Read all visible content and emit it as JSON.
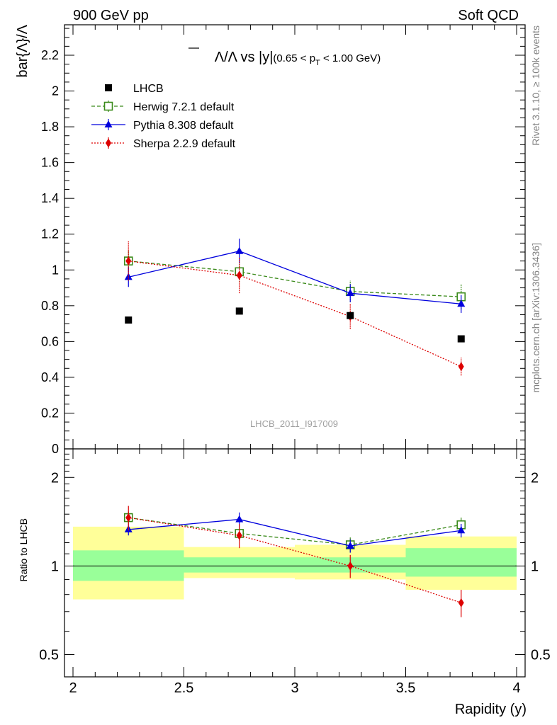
{
  "header": {
    "left": "900 GeV pp",
    "right": "Soft QCD"
  },
  "side_labels": {
    "rivet": "Rivet 3.1.10, ≥ 100k events",
    "mcplots": "mcplots.cern.ch [arXiv:1306.3436]"
  },
  "watermark": "LHCB_2011_I917009",
  "colors": {
    "lhcb": "#000000",
    "herwig": "#3a8a1a",
    "pythia": "#0000dd",
    "sherpa": "#dd0000",
    "band_outer": "#ffff99",
    "band_inner": "#99ff99"
  },
  "chart_data": [
    {
      "type": "scatter",
      "title": {
        "main": "Λ/Λ vs |y|",
        "cut_prefix": "(0.65 < p",
        "cut_sub": "T",
        "cut_suffix": " < 1.00 GeV)"
      },
      "ylabel": "bar{Λ}/Λ",
      "ylim": [
        0,
        2.38
      ],
      "yticks": [
        "0",
        "0.2",
        "0.4",
        "0.6",
        "0.8",
        "1",
        "1.2",
        "1.4",
        "1.6",
        "1.8",
        "2",
        "2.2"
      ],
      "xlim": [
        2,
        4
      ],
      "legend_position": "top-left",
      "series": [
        {
          "name": "LHCB",
          "x": [
            2.25,
            2.75,
            3.25,
            3.75
          ],
          "values": [
            0.72,
            0.77,
            0.745,
            0.615
          ],
          "err": [
            0.01,
            0.01,
            0.01,
            0.01
          ],
          "marker": "square",
          "line": "none"
        },
        {
          "name": "Herwig 7.2.1 default",
          "x": [
            2.25,
            2.75,
            3.25,
            3.75
          ],
          "values": [
            1.05,
            0.99,
            0.88,
            0.85
          ],
          "err": [
            0.06,
            0.06,
            0.06,
            0.07
          ],
          "marker": "open-square",
          "line": "dashed"
        },
        {
          "name": "Pythia 8.308 default",
          "x": [
            2.25,
            2.75,
            3.25,
            3.75
          ],
          "values": [
            0.96,
            1.105,
            0.87,
            0.81
          ],
          "err": [
            0.055,
            0.07,
            0.05,
            0.05
          ],
          "marker": "triangle",
          "line": "solid"
        },
        {
          "name": "Sherpa 2.2.9 default",
          "x": [
            2.25,
            2.75,
            3.25,
            3.75
          ],
          "values": [
            1.05,
            0.97,
            0.74,
            0.46
          ],
          "err": [
            0.11,
            0.1,
            0.07,
            0.05
          ],
          "marker": "diamond",
          "line": "dotted"
        }
      ]
    },
    {
      "type": "scatter",
      "ylabel": "Ratio to LHCB",
      "xlabel": "Rapidity (y)",
      "yscale": "log",
      "ylim": [
        0.42,
        2.5
      ],
      "yticks": [
        "0.5",
        "1",
        "2"
      ],
      "xlim": [
        2,
        4
      ],
      "xticks": [
        "2",
        "2.5",
        "3",
        "3.5",
        "4"
      ],
      "bands": [
        {
          "x": [
            2.0,
            2.5
          ],
          "inner": [
            0.89,
            1.13
          ],
          "outer": [
            0.77,
            1.36
          ]
        },
        {
          "x": [
            2.5,
            3.0
          ],
          "inner": [
            0.95,
            1.07
          ],
          "outer": [
            0.91,
            1.16
          ]
        },
        {
          "x": [
            3.0,
            3.5
          ],
          "inner": [
            0.95,
            1.07
          ],
          "outer": [
            0.9,
            1.18
          ]
        },
        {
          "x": [
            3.5,
            4.0
          ],
          "inner": [
            0.92,
            1.15
          ],
          "outer": [
            0.83,
            1.26
          ]
        }
      ],
      "series": [
        {
          "name": "Herwig 7.2.1 default",
          "x": [
            2.25,
            2.75,
            3.25,
            3.75
          ],
          "values": [
            1.46,
            1.29,
            1.18,
            1.38
          ],
          "err": [
            0.07,
            0.07,
            0.07,
            0.08
          ],
          "marker": "open-square",
          "line": "dashed"
        },
        {
          "name": "Pythia 8.308 default",
          "x": [
            2.25,
            2.75,
            3.25,
            3.75
          ],
          "values": [
            1.33,
            1.44,
            1.17,
            1.32
          ],
          "err": [
            0.06,
            0.08,
            0.06,
            0.07
          ],
          "marker": "triangle",
          "line": "solid"
        },
        {
          "name": "Sherpa 2.2.9 default",
          "x": [
            2.25,
            2.75,
            3.25,
            3.75
          ],
          "values": [
            1.46,
            1.27,
            1.0,
            0.75
          ],
          "err": [
            0.14,
            0.12,
            0.09,
            0.08
          ],
          "marker": "diamond",
          "line": "dotted"
        }
      ]
    }
  ]
}
